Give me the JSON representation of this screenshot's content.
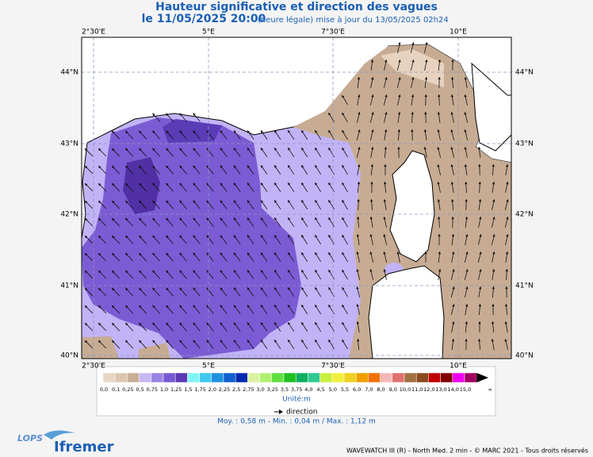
{
  "header": {
    "title": "Hauteur significative et direction des vagues",
    "date": "le 11/05/2025 20:00",
    "update": "(heure légale) mise à jour du 13/05/2025 02h24"
  },
  "map": {
    "lon_labels": [
      "2°30'E",
      "5°E",
      "7°30'E",
      "10°E"
    ],
    "lat_labels": [
      "44°N",
      "43°N",
      "42°N",
      "41°N",
      "40°N"
    ]
  },
  "legend": {
    "scale": [
      {
        "label": "0,0",
        "color": "#e8d6c4"
      },
      {
        "label": "0,1",
        "color": "#dcc6b0"
      },
      {
        "label": "0,25",
        "color": "#c9af97"
      },
      {
        "label": "0,5",
        "color": "#c8b8f4"
      },
      {
        "label": "0,75",
        "color": "#9a84e4"
      },
      {
        "label": "1,0",
        "color": "#7658d2"
      },
      {
        "label": "1,25",
        "color": "#5a38b4"
      },
      {
        "label": "1,5",
        "color": "#80f4f4"
      },
      {
        "label": "1,75",
        "color": "#40c8f0"
      },
      {
        "label": "2,0",
        "color": "#2090e0"
      },
      {
        "label": "2,25",
        "color": "#1060d0"
      },
      {
        "label": "2,5",
        "color": "#0028b0"
      },
      {
        "label": "2,75",
        "color": "#d8f2a0"
      },
      {
        "label": "3,0",
        "color": "#b0f070"
      },
      {
        "label": "3,25",
        "color": "#60e040"
      },
      {
        "label": "3,5",
        "color": "#20c020"
      },
      {
        "label": "3,75",
        "color": "#10b060"
      },
      {
        "label": "4,0",
        "color": "#30c890"
      },
      {
        "label": "4,5",
        "color": "#c8f040"
      },
      {
        "label": "5,0",
        "color": "#f0f040"
      },
      {
        "label": "5,5",
        "color": "#f0d020"
      },
      {
        "label": "6,0",
        "color": "#f0a000"
      },
      {
        "label": "7,0",
        "color": "#f07000"
      },
      {
        "label": "8,0",
        "color": "#f4b8b8"
      },
      {
        "label": "9,0",
        "color": "#e07070"
      },
      {
        "label": "10,0",
        "color": "#a07040"
      },
      {
        "label": "11,0",
        "color": "#8a4a20"
      },
      {
        "label": "12,0",
        "color": "#c00000"
      },
      {
        "label": "13,0",
        "color": "#800000"
      },
      {
        "label": "14,0",
        "color": "#f000f0"
      },
      {
        "label": "15,0",
        "color": "#a00060"
      },
      {
        "label": "∞",
        "color": "#000000"
      }
    ],
    "unit": "Unité:m",
    "direction": "direction"
  },
  "stats": "Moy. : 0,58 m   -   Min. : 0,04 m / Max. : 1,12 m",
  "footer": {
    "credit": "WAVEWATCH III (R) - North Med. 2 min - © MARC 2021 - Tous droits réservés",
    "logo_left": "LOPS",
    "logo_right": "Ifremer"
  }
}
